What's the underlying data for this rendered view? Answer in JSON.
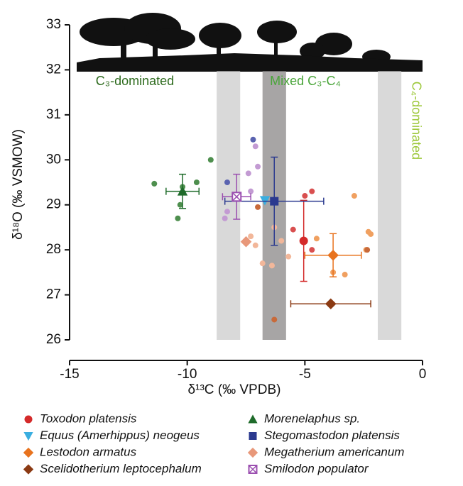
{
  "chart_data": {
    "type": "scatter",
    "xlabel": "δ¹³C (‰ VPDB)",
    "ylabel": "δ¹⁸O (‰ VSMOW)",
    "xlim": [
      -15,
      0
    ],
    "ylim": [
      26,
      33
    ],
    "xticks": [
      -15,
      -10,
      -5,
      0
    ],
    "yticks": [
      26,
      27,
      28,
      29,
      30,
      31,
      32,
      33
    ],
    "bands": [
      {
        "range": [
          -8.75,
          -7.75
        ],
        "color": "#d9d9d9"
      },
      {
        "range": [
          -6.8,
          -5.8
        ],
        "color": "#a7a5a5"
      },
      {
        "range": [
          -1.9,
          -0.9
        ],
        "color": "#d9d9d9"
      }
    ],
    "zones": [
      {
        "label": "C₃-dominated",
        "color": "#2e6b1e"
      },
      {
        "label": "Mixed C₃-C₄",
        "color": "#4aa53a"
      },
      {
        "label": "C₄-dominated",
        "color": "#9dc83a"
      }
    ],
    "series": [
      {
        "name": "Toxodon platensis",
        "marker": "circle",
        "color": "#d42a2a",
        "point_color": "#d94f4f",
        "x": [
          -5.0,
          -4.7,
          -4.7,
          -5.5
        ],
        "y": [
          29.2,
          29.3,
          28.0,
          28.45
        ],
        "mean": {
          "x": -5.05,
          "y": 28.2,
          "xerr": 0,
          "yerr": 0.9
        }
      },
      {
        "name": "Morenelaphus sp.",
        "marker": "triangle",
        "color": "#1e6b2a",
        "point_color": "#4e8f4e",
        "x": [
          -11.4,
          -10.4,
          -10.3,
          -10.2,
          -9.6,
          -9.0
        ],
        "y": [
          29.47,
          28.7,
          29.0,
          29.4,
          29.5,
          30.0
        ],
        "mean": {
          "x": -10.2,
          "y": 29.3,
          "xerr": 0.7,
          "yerr": 0.38
        }
      },
      {
        "name": "Equus (Amerhippus) neogeus",
        "marker": "triangle-down",
        "color": "#3aaee0",
        "point_color": "#7fcbed",
        "x": [],
        "y": [],
        "mean": {
          "x": -6.7,
          "y": 29.1,
          "xerr": 0,
          "yerr": 0
        }
      },
      {
        "name": "Stegomastodon platensis",
        "marker": "square",
        "color": "#2b3a8f",
        "point_color": "#5a63b0",
        "x": [
          -8.3,
          -7.2
        ],
        "y": [
          29.5,
          30.45
        ],
        "mean": {
          "x": -6.3,
          "y": 29.08,
          "xerr": 2.1,
          "yerr": 0.98
        }
      },
      {
        "name": "Lestodon armatus",
        "marker": "diamond",
        "color": "#e8731e",
        "point_color": "#f0a060",
        "x": [
          -3.8,
          -3.3,
          -2.9,
          -2.3,
          -2.2,
          -4.5,
          -2.4
        ],
        "y": [
          27.5,
          27.45,
          29.2,
          28.4,
          28.35,
          28.25,
          28.0
        ],
        "mean": {
          "x": -3.8,
          "y": 27.88,
          "xerr": 1.2,
          "yerr": 0.48
        }
      },
      {
        "name": "Megatherium americanum",
        "marker": "diamond",
        "color": "#e8987a",
        "point_color": "#f2b79a",
        "x": [
          -7.1,
          -7.3,
          -6.3,
          -6.0,
          -5.7,
          -6.8,
          -6.4
        ],
        "y": [
          28.1,
          28.3,
          28.5,
          28.2,
          27.85,
          27.7,
          27.65
        ],
        "mean": {
          "x": -7.5,
          "y": 28.18,
          "xerr": 0,
          "yerr": 0
        }
      },
      {
        "name": "Scelidotherium leptocephalum",
        "marker": "diamond",
        "color": "#8b3a13",
        "point_color": "#c86a3a",
        "x": [
          -6.3,
          -2.35,
          -7.0
        ],
        "y": [
          26.45,
          28.0,
          28.95
        ],
        "mean": {
          "x": -3.9,
          "y": 26.8,
          "xerr": 1.7,
          "yerr": 0
        }
      },
      {
        "name": "Smilodon populator",
        "marker": "crossed-square",
        "color": "#9b4fb0",
        "point_color": "#c39bd3",
        "x": [
          -8.4,
          -8.3,
          -7.3,
          -7.4,
          -7.0,
          -7.1
        ],
        "y": [
          28.7,
          28.85,
          29.3,
          29.7,
          29.85,
          30.3
        ],
        "mean": {
          "x": -7.9,
          "y": 29.18,
          "xerr": 0.6,
          "yerr": 0.5
        }
      }
    ]
  }
}
